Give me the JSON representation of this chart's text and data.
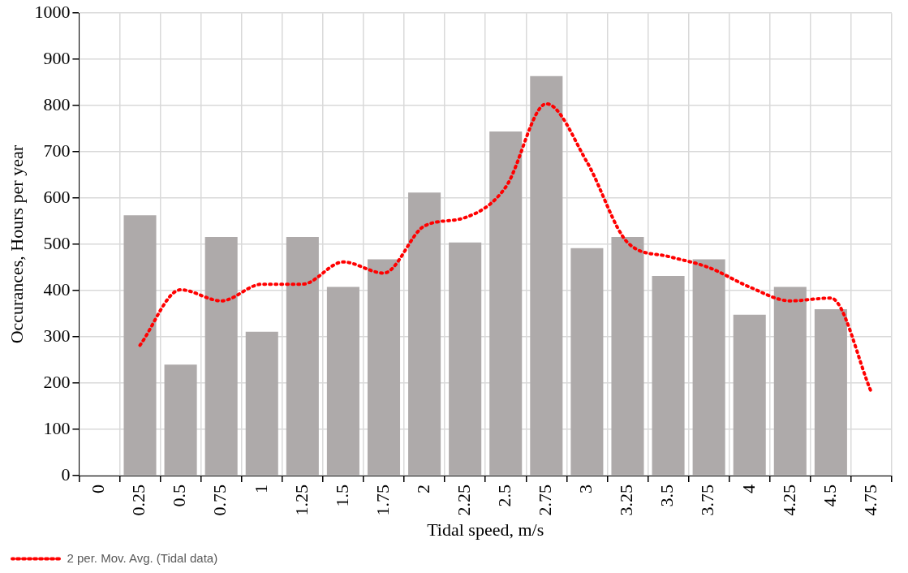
{
  "chart_data": {
    "type": "bar",
    "xlabel": "Tidal speed, m/s",
    "ylabel": "Occurances, Hours per year",
    "categories": [
      "0",
      "0.25",
      "0.5",
      "0.75",
      "1",
      "1.25",
      "1.5",
      "1.75",
      "2",
      "2.25",
      "2.5",
      "2.75",
      "3",
      "3.25",
      "3.5",
      "3.75",
      "4",
      "4.25",
      "4.5",
      "4.75"
    ],
    "series": [
      {
        "color": "#aeaaaa",
        "values": [
          0,
          563,
          240,
          516,
          311,
          516,
          408,
          468,
          612,
          504,
          744,
          864,
          492,
          516,
          432,
          468,
          348,
          408,
          360,
          0
        ]
      },
      {
        "type": "line",
        "name": "2 per. Mov. Avg. (Tidal data)",
        "color": "#ff0000",
        "line_style": "dotted",
        "marker": "none",
        "values": [
          null,
          282,
          402,
          378,
          414,
          414,
          462,
          438,
          540,
          558,
          624,
          804,
          678,
          504,
          474,
          450,
          408,
          378,
          384,
          180
        ]
      }
    ],
    "ylim": [
      0,
      1000
    ],
    "yticks": [
      0,
      100,
      200,
      300,
      400,
      500,
      600,
      700,
      800,
      900,
      1000
    ],
    "grid": true,
    "legend": "bottom left"
  }
}
